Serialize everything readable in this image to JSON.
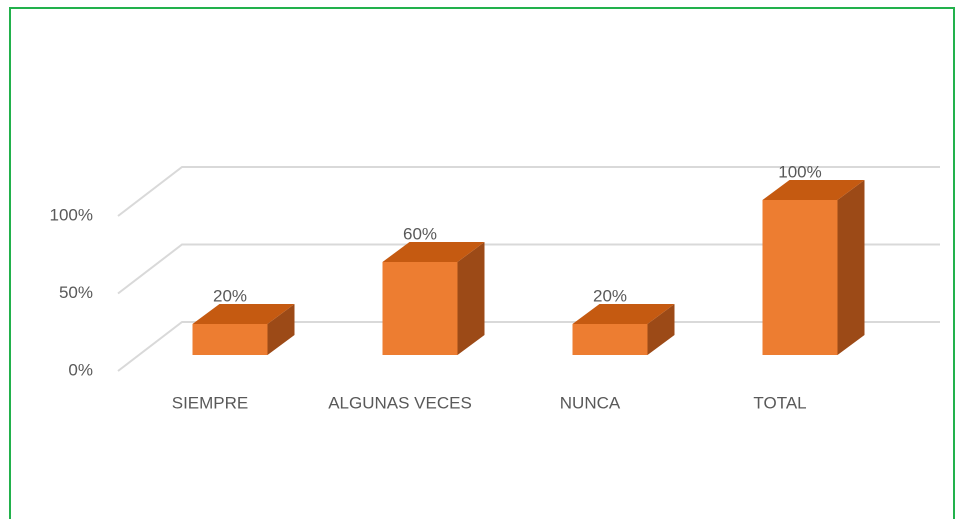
{
  "chart_data": {
    "type": "bar3d",
    "categories": [
      "SIEMPRE",
      "ALGUNAS VECES",
      "NUNCA",
      "TOTAL"
    ],
    "values": [
      20,
      60,
      20,
      100
    ],
    "value_labels": [
      "20%",
      "60%",
      "20%",
      "100%"
    ],
    "color": "#ed7d31",
    "ylim": [
      0,
      100
    ],
    "yticks": [
      {
        "value": 0,
        "label": "0%"
      },
      {
        "value": 50,
        "label": "50%"
      },
      {
        "value": 100,
        "label": "100%"
      }
    ],
    "grid": true
  }
}
